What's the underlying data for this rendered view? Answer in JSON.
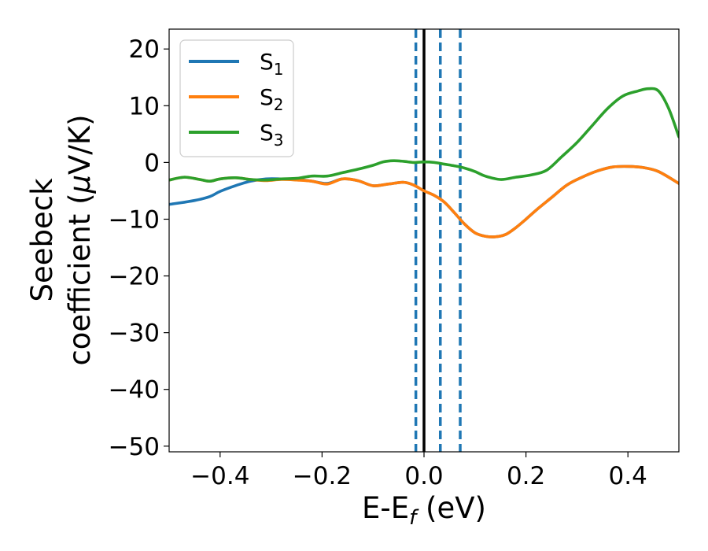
{
  "chart_data": {
    "type": "line",
    "xlabel_main": "E-E",
    "xlabel_sub": "f",
    "xlabel_unit": " (eV)",
    "ylabel_line1": "Seebeck",
    "ylabel_line2_text": "coefficient  (",
    "ylabel_line2_mu": "μ",
    "ylabel_line2_unit": "V/K)",
    "xlim": [
      -0.5,
      0.5
    ],
    "ylim": [
      -51,
      23.5
    ],
    "x_ticks": [
      {
        "value": -0.4,
        "label": "−0.4"
      },
      {
        "value": -0.2,
        "label": "−0.2"
      },
      {
        "value": 0.0,
        "label": "0.0"
      },
      {
        "value": 0.2,
        "label": "0.2"
      },
      {
        "value": 0.4,
        "label": "0.4"
      }
    ],
    "y_ticks": [
      {
        "value": 20,
        "label": "20"
      },
      {
        "value": 10,
        "label": "10"
      },
      {
        "value": 0,
        "label": "0"
      },
      {
        "value": -10,
        "label": "−10"
      },
      {
        "value": -20,
        "label": "−20"
      },
      {
        "value": -30,
        "label": "−30"
      },
      {
        "value": -40,
        "label": "−40"
      },
      {
        "value": -50,
        "label": "−50"
      }
    ],
    "legend_position": "top-left",
    "grid": false,
    "vertical_lines": [
      {
        "x": 0.0,
        "style": "solid",
        "color": "#000000"
      },
      {
        "x": -0.016,
        "style": "dashed",
        "color": "#1f77b4"
      },
      {
        "x": 0.032,
        "style": "dashed",
        "color": "#1f77b4"
      },
      {
        "x": 0.071,
        "style": "dashed",
        "color": "#1f77b4"
      }
    ],
    "series": [
      {
        "name": "S",
        "sub": "1",
        "color": "#1f77b4",
        "x": [
          -0.5,
          -0.45,
          -0.42,
          -0.4,
          -0.37,
          -0.34,
          -0.31,
          -0.28,
          -0.25,
          -0.22,
          -0.19,
          -0.16,
          -0.13,
          -0.1,
          -0.07,
          -0.04,
          -0.02,
          0.0,
          0.02,
          0.04,
          0.06,
          0.08,
          0.1,
          0.12,
          0.14,
          0.16,
          0.18,
          0.2,
          0.22,
          0.25,
          0.28,
          0.31,
          0.34,
          0.37,
          0.4,
          0.43,
          0.46,
          0.5
        ],
        "y": [
          -7.4,
          -6.7,
          -6.0,
          -5.1,
          -4.1,
          -3.3,
          -2.9,
          -2.9,
          -3.0,
          -3.3,
          -3.7,
          -2.9,
          -3.2,
          -4.1,
          -3.8,
          -3.5,
          -4.0,
          -5.0,
          -5.8,
          -7.0,
          -8.9,
          -10.9,
          -12.4,
          -13.0,
          -13.1,
          -12.7,
          -11.5,
          -10.0,
          -8.4,
          -6.2,
          -4.0,
          -2.6,
          -1.5,
          -0.8,
          -0.7,
          -0.9,
          -1.6,
          -3.7
        ]
      },
      {
        "name": "S",
        "sub": "2",
        "color": "#ff7f0e",
        "x": [
          -0.5,
          -0.47,
          -0.44,
          -0.42,
          -0.4,
          -0.37,
          -0.34,
          -0.31,
          -0.28,
          -0.25,
          -0.22,
          -0.19,
          -0.16,
          -0.13,
          -0.1,
          -0.07,
          -0.04,
          -0.02,
          0.0,
          0.02,
          0.04,
          0.06,
          0.08,
          0.1,
          0.12,
          0.14,
          0.16,
          0.18,
          0.2,
          0.22,
          0.25,
          0.28,
          0.31,
          0.34,
          0.37,
          0.4,
          0.43,
          0.46,
          0.5
        ],
        "y": [
          -3.1,
          -2.6,
          -3.0,
          -3.3,
          -2.9,
          -2.7,
          -3.0,
          -3.2,
          -3.0,
          -3.1,
          -3.3,
          -3.8,
          -2.9,
          -3.2,
          -4.1,
          -3.8,
          -3.5,
          -4.0,
          -5.0,
          -5.8,
          -7.0,
          -8.9,
          -10.9,
          -12.4,
          -13.0,
          -13.1,
          -12.7,
          -11.5,
          -10.0,
          -8.4,
          -6.2,
          -4.0,
          -2.6,
          -1.5,
          -0.8,
          -0.7,
          -0.9,
          -1.6,
          -3.7
        ]
      },
      {
        "name": "S",
        "sub": "3",
        "color": "#2ca02c",
        "x": [
          -0.5,
          -0.47,
          -0.44,
          -0.42,
          -0.4,
          -0.37,
          -0.34,
          -0.31,
          -0.28,
          -0.25,
          -0.22,
          -0.19,
          -0.16,
          -0.13,
          -0.1,
          -0.08,
          -0.06,
          -0.04,
          -0.02,
          0.0,
          0.02,
          0.04,
          0.06,
          0.08,
          0.1,
          0.12,
          0.15,
          0.18,
          0.21,
          0.24,
          0.27,
          0.3,
          0.33,
          0.36,
          0.39,
          0.42,
          0.44,
          0.46,
          0.48,
          0.5
        ],
        "y": [
          -3.1,
          -2.6,
          -3.0,
          -3.3,
          -2.9,
          -2.7,
          -3.0,
          -3.1,
          -2.9,
          -2.8,
          -2.4,
          -2.4,
          -1.8,
          -1.2,
          -0.5,
          0.1,
          0.3,
          0.2,
          0.0,
          0.1,
          0.0,
          -0.3,
          -0.6,
          -1.0,
          -1.6,
          -2.4,
          -3.0,
          -2.6,
          -2.2,
          -1.4,
          1.0,
          3.5,
          6.5,
          9.5,
          11.7,
          12.6,
          13.0,
          12.6,
          9.5,
          4.5
        ]
      }
    ]
  }
}
